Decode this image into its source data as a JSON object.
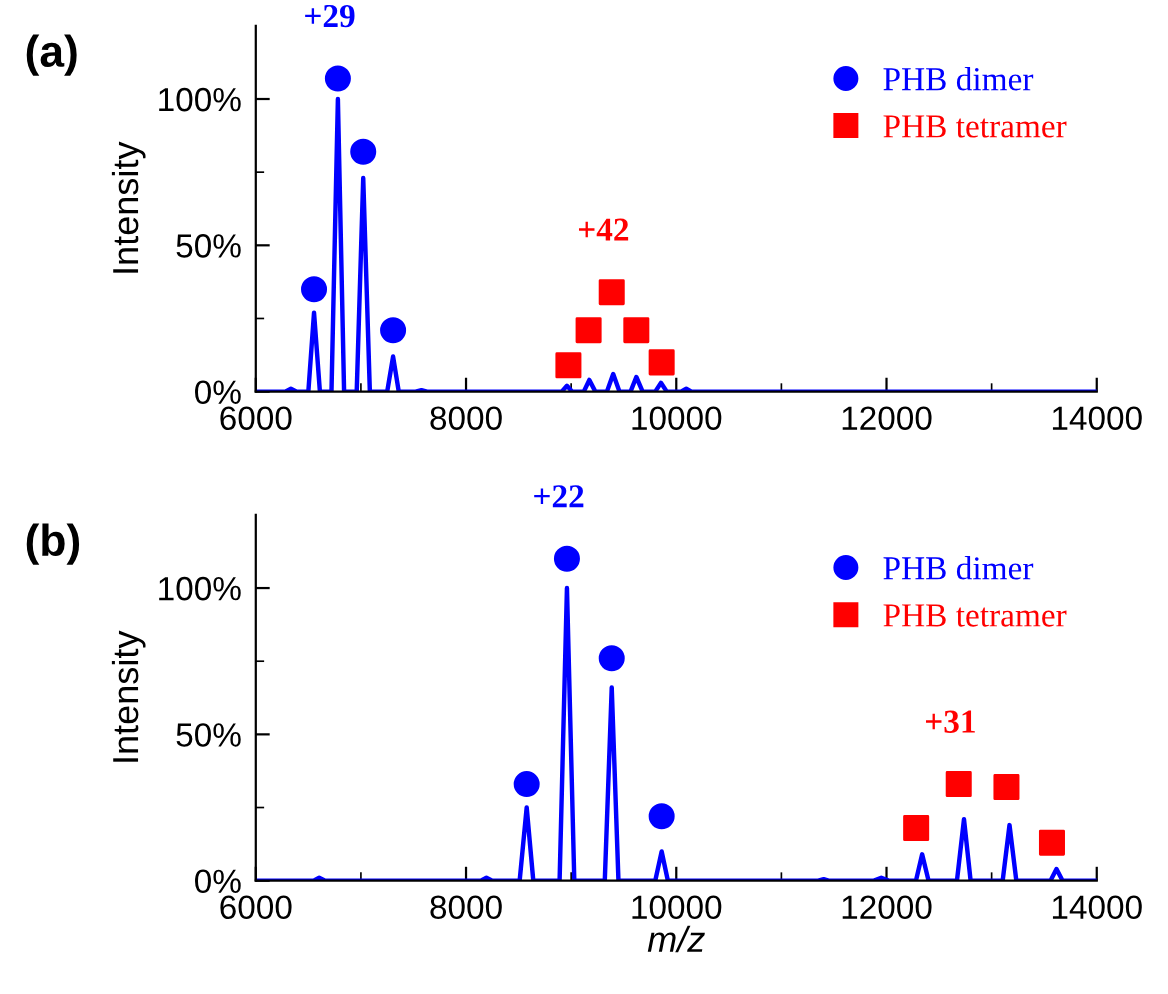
{
  "chart_data": [
    {
      "type": "line",
      "title": "(a)",
      "ylabel": "Intensity",
      "xlim": [
        6000,
        14000
      ],
      "ylim": [
        0,
        125
      ],
      "xticks": [
        6000,
        {
          "value": 7000,
          "label": null
        },
        8000,
        {
          "value": 9000,
          "label": null
        },
        10000,
        {
          "value": 11000,
          "label": null
        },
        12000,
        {
          "value": 13000,
          "label": null
        },
        14000
      ],
      "yticks": [
        {
          "value": 0,
          "label": "0%"
        },
        {
          "value": 25,
          "label": null
        },
        {
          "value": 50,
          "label": "50%"
        },
        {
          "value": 75,
          "label": null
        },
        {
          "value": 100,
          "label": "100%"
        }
      ],
      "grid": false,
      "legend": "top right",
      "series": [
        {
          "color": "#0000ff",
          "x": [
            6000,
            6280,
            6334,
            6390,
            6500,
            6554,
            6610,
            6720,
            6781,
            6840,
            6960,
            7022,
            7085,
            7250,
            7306,
            7360,
            7520,
            7576,
            7630,
            8910,
            8960,
            9010,
            9120,
            9173,
            9230,
            9340,
            9400,
            9460,
            9565,
            9620,
            9680,
            9800,
            9854,
            9910,
            10045,
            10095,
            10145,
            14000
          ],
          "values": [
            0,
            0,
            1,
            0,
            0,
            27,
            0,
            0,
            100,
            0,
            0,
            73,
            0,
            0,
            12,
            0,
            0,
            0.5,
            0,
            0,
            2,
            0,
            0,
            4,
            0,
            0,
            6,
            0,
            0,
            5,
            0,
            0,
            3,
            0,
            0,
            1,
            0,
            0
          ]
        },
        {
          "type": "scatter",
          "name": "PHB dimer",
          "color": "#0000ff",
          "marker": "circle",
          "x": [
            6554,
            6781,
            7022,
            7306
          ],
          "values": [
            35,
            107,
            82,
            21
          ]
        },
        {
          "type": "scatter",
          "name": "PHB tetramer",
          "color": "#ff0000",
          "marker": "square",
          "x": [
            8974,
            9166,
            9386,
            9620,
            9861
          ],
          "values": [
            9,
            21,
            34,
            21,
            10
          ]
        }
      ],
      "annotations": [
        "+29",
        "+42"
      ]
    },
    {
      "type": "line",
      "title": "(b)",
      "xlabel": "m/z",
      "ylabel": "Intensity",
      "xlim": [
        6000,
        14000
      ],
      "ylim": [
        0,
        125
      ],
      "xticks": [
        6000,
        {
          "value": 7000,
          "label": null
        },
        8000,
        {
          "value": 9000,
          "label": null
        },
        10000,
        {
          "value": 11000,
          "label": null
        },
        12000,
        {
          "value": 13000,
          "label": null
        },
        14000
      ],
      "yticks": [
        {
          "value": 0,
          "label": "0%"
        },
        {
          "value": 25,
          "label": null
        },
        {
          "value": 50,
          "label": "50%"
        },
        {
          "value": 75,
          "label": null
        },
        {
          "value": 100,
          "label": "100%"
        }
      ],
      "grid": false,
      "legend": "top right",
      "series": [
        {
          "color": "#0000ff",
          "x": [
            6000,
            6550,
            6603,
            6660,
            8140,
            8194,
            8250,
            8510,
            8577,
            8640,
            8890,
            8960,
            9030,
            9320,
            9386,
            9450,
            9800,
            9861,
            9920,
            11350,
            11402,
            11450,
            11880,
            11950,
            12020,
            12280,
            12339,
            12400,
            12670,
            12737,
            12800,
            13105,
            13170,
            13235,
            13560,
            13617,
            13675,
            14000
          ],
          "values": [
            0,
            0,
            1,
            0,
            0,
            1,
            0,
            0,
            25,
            0,
            0,
            100,
            0,
            0,
            66,
            0,
            0,
            10,
            0,
            0,
            0.5,
            0,
            0,
            1,
            0,
            0,
            9,
            0,
            0,
            21,
            0,
            0,
            19,
            0,
            0,
            4,
            0,
            0
          ]
        },
        {
          "type": "scatter",
          "name": "PHB dimer",
          "color": "#0000ff",
          "marker": "circle",
          "x": [
            8577,
            8960,
            9386,
            9861
          ],
          "values": [
            33,
            110,
            76,
            22
          ]
        },
        {
          "type": "scatter",
          "name": "PHB tetramer",
          "color": "#ff0000",
          "marker": "square",
          "x": [
            12282,
            12687,
            13141,
            13574
          ],
          "values": [
            18,
            33,
            32,
            13
          ]
        }
      ],
      "annotations": [
        "+22",
        "+31"
      ]
    }
  ]
}
